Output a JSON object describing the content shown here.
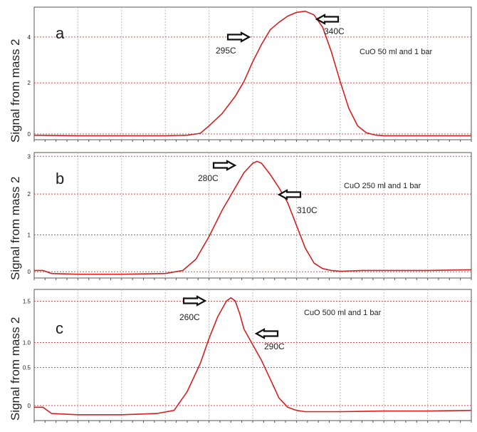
{
  "figure": {
    "ylabel": "Signal from mass 2",
    "colors": {
      "line": "#d42020",
      "grid": "#bdbdbd",
      "hgrid": "#e04a4a",
      "axis": "#555555",
      "arrow": "#111111"
    }
  },
  "chart_data": [
    {
      "type": "line",
      "panel_letter": "a",
      "legend_text": "CuO 50 ml and 1 bar",
      "ylabel": "Signal from mass 2",
      "xlim": [
        0,
        100
      ],
      "ylim": [
        0,
        5.0
      ],
      "yticks": [
        "0",
        "2",
        "4"
      ],
      "grid": true,
      "annotations": [
        {
          "label": "295C",
          "x": 51,
          "arrow": "right"
        },
        {
          "label": "340C",
          "x": 64,
          "arrow": "left"
        }
      ],
      "series": [
        {
          "x": [
            0,
            10,
            20,
            30,
            35,
            38,
            40,
            43,
            46,
            48,
            50,
            52,
            54,
            56,
            58,
            60,
            62,
            64,
            66,
            68,
            70,
            72,
            74,
            76,
            78,
            80,
            85,
            90,
            100
          ],
          "y": [
            0.02,
            0.0,
            0.0,
            0.0,
            0.02,
            0.1,
            0.4,
            0.9,
            1.6,
            2.2,
            3.0,
            3.7,
            4.3,
            4.6,
            4.85,
            5.0,
            5.05,
            4.9,
            4.4,
            3.4,
            2.2,
            1.1,
            0.4,
            0.12,
            0.03,
            0.0,
            0.0,
            0.0,
            0.0
          ]
        }
      ]
    },
    {
      "type": "line",
      "panel_letter": "b",
      "legend_text": "CuO 250 ml and 1 bar",
      "ylabel": "Signal from mass 2",
      "xlim": [
        0,
        100
      ],
      "ylim": [
        -0.1,
        3.0
      ],
      "yticks": [
        "0",
        "1",
        "2",
        "3"
      ],
      "grid": true,
      "annotations": [
        {
          "label": "280C",
          "x": 50,
          "arrow": "right"
        },
        {
          "label": "310C",
          "x": 58,
          "arrow": "left"
        }
      ],
      "series": [
        {
          "x": [
            0,
            2,
            4,
            10,
            20,
            30,
            34,
            37,
            40,
            43,
            46,
            48,
            50,
            51,
            52,
            54,
            56,
            58,
            60,
            62,
            64,
            66,
            68,
            70,
            75,
            80,
            90,
            100
          ],
          "y": [
            0.0,
            0.0,
            -0.08,
            -0.1,
            -0.1,
            -0.08,
            0.0,
            0.3,
            0.9,
            1.6,
            2.2,
            2.6,
            2.85,
            2.9,
            2.85,
            2.55,
            2.2,
            1.8,
            1.2,
            0.6,
            0.2,
            0.05,
            0.0,
            -0.02,
            0.0,
            0.0,
            0.0,
            0.02
          ]
        }
      ]
    },
    {
      "type": "line",
      "panel_letter": "c",
      "legend_text": "CuO 500 ml and 1 bar",
      "ylabel": "Signal from mass 2",
      "xlim": [
        0,
        100
      ],
      "ylim": [
        -0.15,
        1.8
      ],
      "yticks": [
        "0",
        "0.5",
        "1.0",
        "1.5"
      ],
      "grid": true,
      "annotations": [
        {
          "label": "260C",
          "x": 46,
          "arrow": "right"
        },
        {
          "label": "290C",
          "x": 55,
          "arrow": "left"
        }
      ],
      "series": [
        {
          "x": [
            0,
            2,
            4,
            10,
            20,
            28,
            32,
            35,
            38,
            40,
            42,
            44,
            45,
            46,
            47,
            48,
            50,
            52,
            54,
            56,
            58,
            60,
            62,
            65,
            70,
            80,
            90,
            100
          ],
          "y": [
            0.0,
            0.0,
            -0.1,
            -0.12,
            -0.12,
            -0.1,
            -0.05,
            0.25,
            0.7,
            1.1,
            1.45,
            1.7,
            1.75,
            1.7,
            1.5,
            1.25,
            1.0,
            0.75,
            0.45,
            0.15,
            0.0,
            -0.05,
            -0.07,
            -0.07,
            -0.07,
            -0.06,
            -0.06,
            -0.05
          ]
        }
      ]
    }
  ]
}
